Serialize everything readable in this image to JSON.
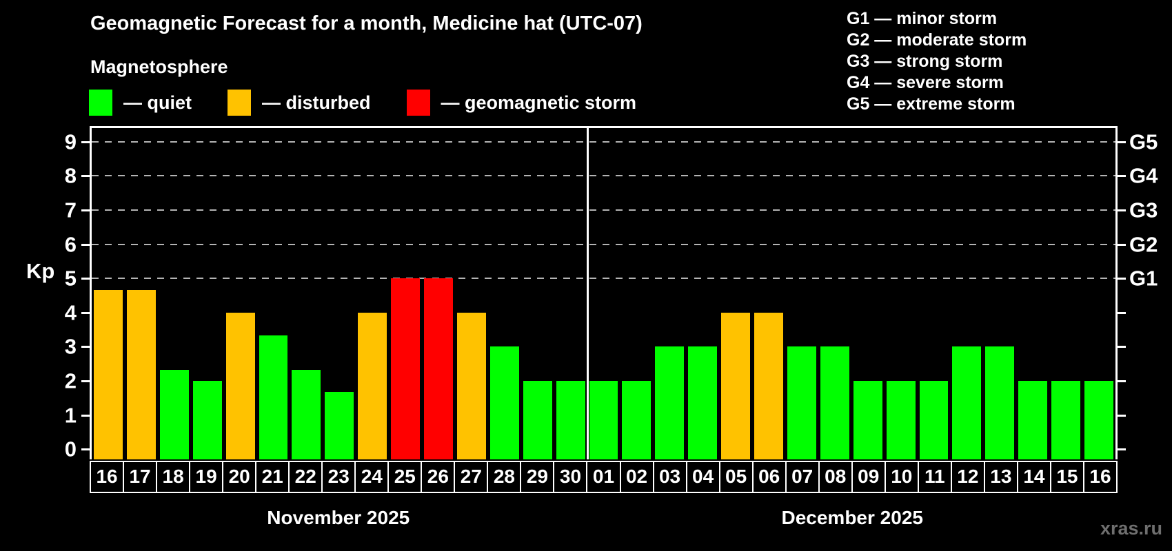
{
  "header": {
    "title": "Geomagnetic Forecast for a month, Medicine hat (UTC-07)",
    "subtitle": "Magnetosphere"
  },
  "legend": {
    "items": [
      {
        "name": "quiet",
        "label": "— quiet",
        "color": "#00ff00"
      },
      {
        "name": "disturbed",
        "label": "— disturbed",
        "color": "#ffc200"
      },
      {
        "name": "geomagnetic-storm",
        "label": "— geomagnetic storm",
        "color": "#ff0000"
      }
    ]
  },
  "g_legend": {
    "lines": [
      "G1 — minor storm",
      "G2 — moderate storm",
      "G3 — strong storm",
      "G4 — severe storm",
      "G5 — extreme storm"
    ]
  },
  "watermark": "xras.ru",
  "chart_data": {
    "type": "bar",
    "ylabel": "Kp",
    "ylim": [
      -0.3,
      9.4
    ],
    "yticks": [
      0,
      1,
      2,
      3,
      4,
      5,
      6,
      7,
      8,
      9
    ],
    "grid": "dashed horizontal lines at G-storm levels only",
    "legend_position": "top-left and top-right",
    "g_levels": [
      {
        "kp": 5,
        "label": "G1"
      },
      {
        "kp": 6,
        "label": "G2"
      },
      {
        "kp": 7,
        "label": "G3"
      },
      {
        "kp": 8,
        "label": "G4"
      },
      {
        "kp": 9,
        "label": "G5"
      }
    ],
    "status_colors": {
      "quiet": "#00ff00",
      "disturbed": "#ffc200",
      "storm": "#ff0000"
    },
    "months": [
      {
        "label": "November 2025",
        "days": [
          {
            "day": "16",
            "kp": 4.67,
            "status": "disturbed"
          },
          {
            "day": "17",
            "kp": 4.67,
            "status": "disturbed"
          },
          {
            "day": "18",
            "kp": 2.33,
            "status": "quiet"
          },
          {
            "day": "19",
            "kp": 2,
            "status": "quiet"
          },
          {
            "day": "20",
            "kp": 4,
            "status": "disturbed"
          },
          {
            "day": "21",
            "kp": 3.33,
            "status": "quiet"
          },
          {
            "day": "22",
            "kp": 2.33,
            "status": "quiet"
          },
          {
            "day": "23",
            "kp": 1.67,
            "status": "quiet"
          },
          {
            "day": "24",
            "kp": 4,
            "status": "disturbed"
          },
          {
            "day": "25",
            "kp": 5,
            "status": "storm"
          },
          {
            "day": "26",
            "kp": 5,
            "status": "storm"
          },
          {
            "day": "27",
            "kp": 4,
            "status": "disturbed"
          },
          {
            "day": "28",
            "kp": 3,
            "status": "quiet"
          },
          {
            "day": "29",
            "kp": 2,
            "status": "quiet"
          },
          {
            "day": "30",
            "kp": 2,
            "status": "quiet"
          }
        ]
      },
      {
        "label": "December 2025",
        "days": [
          {
            "day": "01",
            "kp": 2,
            "status": "quiet"
          },
          {
            "day": "02",
            "kp": 2,
            "status": "quiet"
          },
          {
            "day": "03",
            "kp": 3,
            "status": "quiet"
          },
          {
            "day": "04",
            "kp": 3,
            "status": "quiet"
          },
          {
            "day": "05",
            "kp": 4,
            "status": "disturbed"
          },
          {
            "day": "06",
            "kp": 4,
            "status": "disturbed"
          },
          {
            "day": "07",
            "kp": 3,
            "status": "quiet"
          },
          {
            "day": "08",
            "kp": 3,
            "status": "quiet"
          },
          {
            "day": "09",
            "kp": 2,
            "status": "quiet"
          },
          {
            "day": "10",
            "kp": 2,
            "status": "quiet"
          },
          {
            "day": "11",
            "kp": 2,
            "status": "quiet"
          },
          {
            "day": "12",
            "kp": 3,
            "status": "quiet"
          },
          {
            "day": "13",
            "kp": 3,
            "status": "quiet"
          },
          {
            "day": "14",
            "kp": 2,
            "status": "quiet"
          },
          {
            "day": "15",
            "kp": 2,
            "status": "quiet"
          },
          {
            "day": "16",
            "kp": 2,
            "status": "quiet"
          }
        ]
      }
    ]
  }
}
